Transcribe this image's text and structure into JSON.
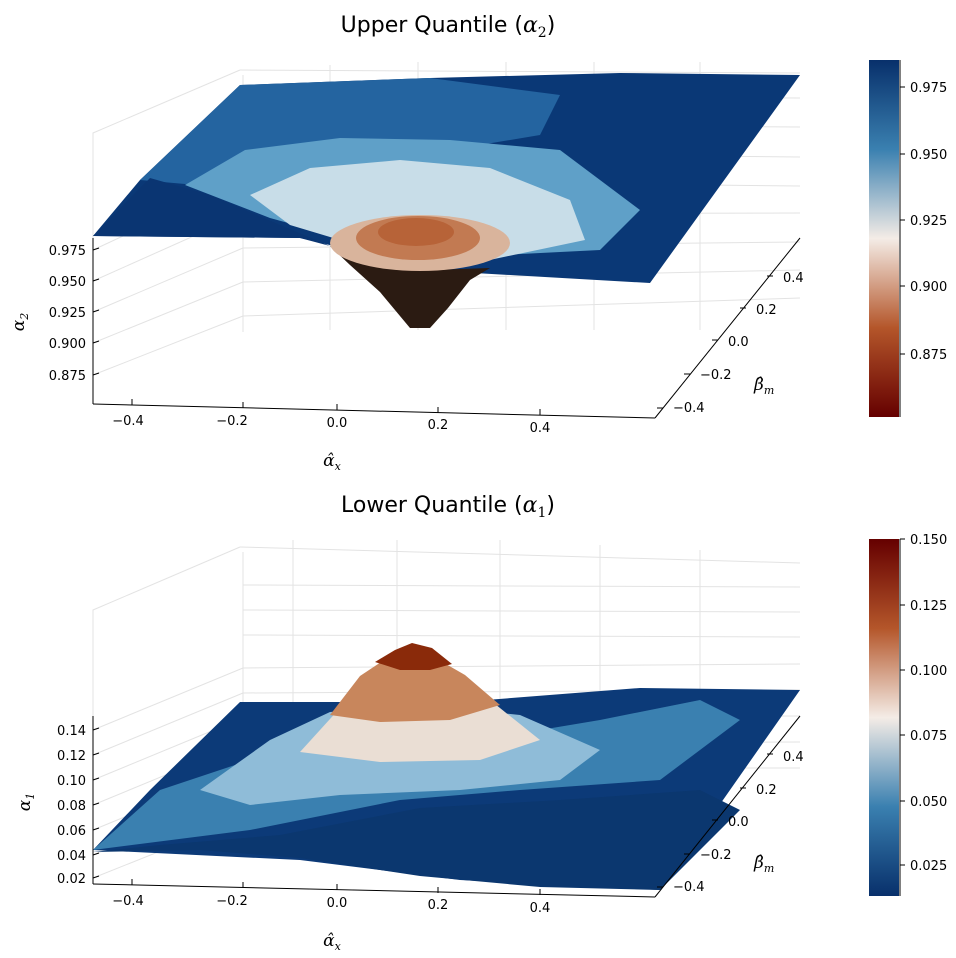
{
  "chart_data": [
    {
      "type": "surface",
      "title": "Upper Quantile (",
      "title_sym": "α",
      "title_sub": "2",
      "title_close": ")",
      "xlabel": "α̂",
      "xlabel_sub": "x",
      "ylabel": "β̂",
      "ylabel_sub": "m",
      "zlabel": "α",
      "zlabel_sub": "2",
      "x_ticks": [
        "−0.4",
        "−0.2",
        "0.0",
        "0.2",
        "0.4"
      ],
      "y_ticks": [
        "−0.4",
        "−0.2",
        "0.0",
        "0.2",
        "0.4"
      ],
      "z_ticks": [
        "0.875",
        "0.900",
        "0.925",
        "0.950",
        "0.975"
      ],
      "colorbar_ticks": [
        "0.875",
        "0.900",
        "0.925",
        "0.950",
        "0.975"
      ],
      "zlim": [
        0.855,
        0.985
      ],
      "baseline": 0.975,
      "extremum": 0.855,
      "shape": "dip",
      "colormap": [
        "#650000",
        "#b4562a",
        "#f4ece6",
        "#3a80b0",
        "#08306b"
      ]
    },
    {
      "type": "surface",
      "title": "Lower Quantile (",
      "title_sym": "α",
      "title_sub": "1",
      "title_close": ")",
      "xlabel": "α̂",
      "xlabel_sub": "x",
      "ylabel": "β̂",
      "ylabel_sub": "m",
      "zlabel": "α",
      "zlabel_sub": "1",
      "x_ticks": [
        "−0.4",
        "−0.2",
        "0.0",
        "0.2",
        "0.4"
      ],
      "y_ticks": [
        "−0.4",
        "−0.2",
        "0.0",
        "0.2",
        "0.4"
      ],
      "z_ticks": [
        "0.02",
        "0.04",
        "0.06",
        "0.08",
        "0.10",
        "0.12",
        "0.14"
      ],
      "colorbar_ticks": [
        "0.025",
        "0.050",
        "0.075",
        "0.100",
        "0.125",
        "0.150"
      ],
      "zlim": [
        0.013,
        0.15
      ],
      "baseline": 0.02,
      "extremum": 0.15,
      "shape": "peak",
      "colormap": [
        "#08306b",
        "#3a80b0",
        "#f4ece6",
        "#b4562a",
        "#650000"
      ]
    }
  ]
}
